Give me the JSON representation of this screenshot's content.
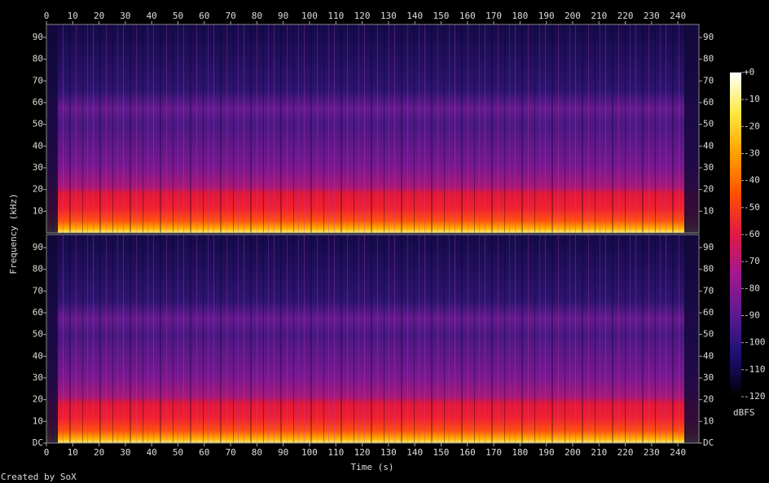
{
  "chart_data": {
    "type": "spectrogram",
    "xlabel": "Time (s)",
    "ylabel": "Frequency (kHz)",
    "footer": "Created by SoX",
    "xlim": [
      0,
      248
    ],
    "xticks": [
      0,
      10,
      20,
      30,
      40,
      50,
      60,
      70,
      80,
      90,
      100,
      110,
      120,
      130,
      140,
      150,
      160,
      170,
      180,
      190,
      200,
      210,
      220,
      230,
      240
    ],
    "channels": [
      {
        "ylim": [
          0,
          96
        ],
        "yticks": [
          10,
          20,
          30,
          40,
          50,
          60,
          70,
          80,
          90
        ]
      },
      {
        "ylim": [
          0,
          96
        ],
        "yticks": [
          {
            "value": 0,
            "label": "DC"
          },
          10,
          20,
          30,
          40,
          50,
          60,
          70,
          80,
          90
        ]
      }
    ],
    "colorbar": {
      "label": "dBFS",
      "lim": [
        -120,
        0
      ],
      "ticks": [
        {
          "value": 0,
          "label": "+0"
        },
        -10,
        -20,
        -30,
        -40,
        -50,
        -60,
        -70,
        -80,
        -90,
        -100,
        -110,
        -120
      ],
      "colors": [
        "#000000",
        "#1a1070",
        "#5a1a90",
        "#a01890",
        "#e01848",
        "#ff5000",
        "#ffa000",
        "#ffe840",
        "#ffffff"
      ]
    }
  }
}
